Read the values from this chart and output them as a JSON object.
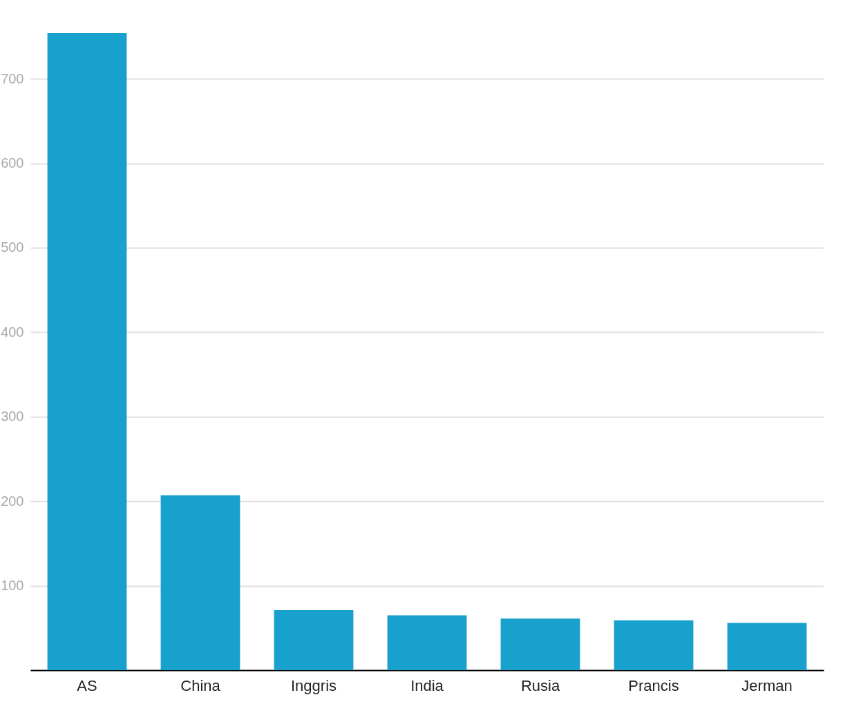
{
  "chart_data": {
    "type": "bar",
    "categories": [
      "AS",
      "China",
      "Inggris",
      "India",
      "Rusia",
      "Prancis",
      "Jerman"
    ],
    "values": [
      754,
      207,
      71,
      65,
      61,
      59,
      56
    ],
    "color": "#19a1cd",
    "ylim": [
      0,
      754
    ],
    "yticks": [
      100,
      200,
      300,
      400,
      500,
      600,
      700
    ],
    "grid": "y"
  }
}
